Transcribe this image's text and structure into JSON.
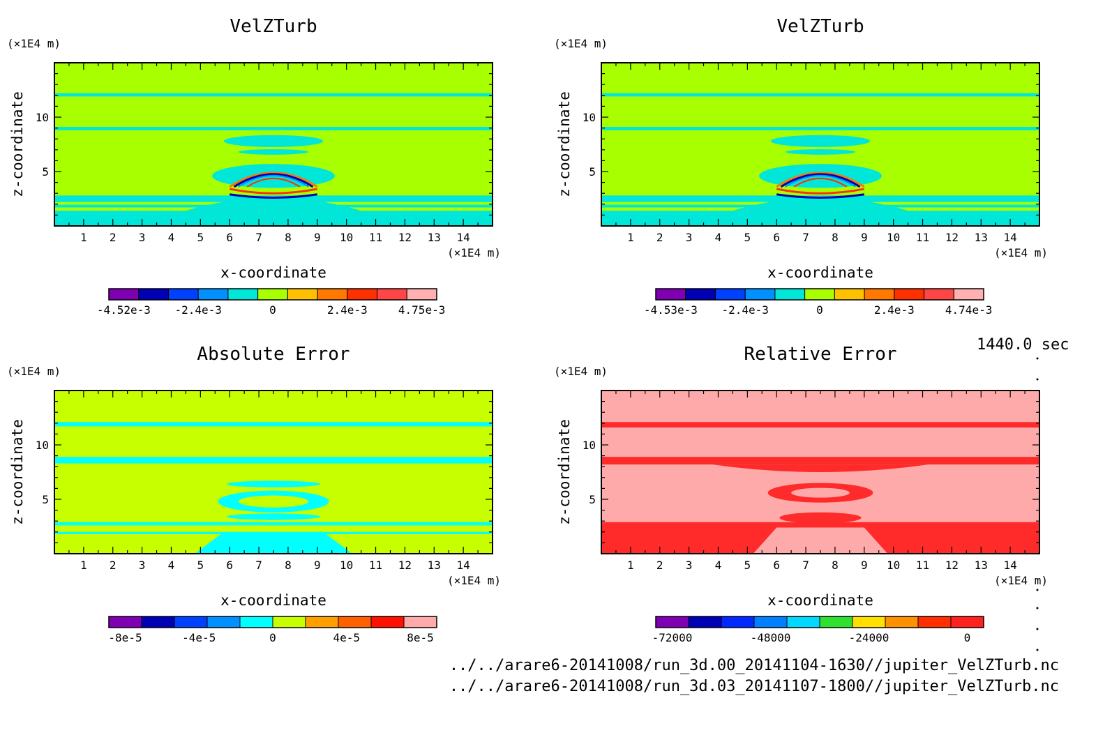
{
  "chart_data": [
    {
      "type": "heatmap",
      "title": "VelZTurb",
      "xlabel": "x-coordinate",
      "ylabel": "z-coordinate",
      "x_unit": "(×1E4 m)",
      "y_unit": "(×1E4 m)",
      "xlim": [
        0,
        15
      ],
      "ylim": [
        0,
        15
      ],
      "xticks": [
        1,
        2,
        3,
        4,
        5,
        6,
        7,
        8,
        9,
        10,
        11,
        12,
        13,
        14
      ],
      "yticks": [
        5,
        10
      ],
      "colorbar": {
        "colors": [
          "#7f00b2",
          "#0000b4",
          "#0040ff",
          "#0090ff",
          "#00e6d8",
          "#a8ff00",
          "#ffc000",
          "#ff7800",
          "#ff3000",
          "#ff4545",
          "#ffb0b0"
        ],
        "tick_labels": [
          "-4.52e-3",
          "-2.4e-3",
          "0",
          "2.4e-3",
          "4.75e-3"
        ]
      }
    },
    {
      "type": "heatmap",
      "title": "VelZTurb",
      "xlabel": "x-coordinate",
      "ylabel": "z-coordinate",
      "x_unit": "(×1E4 m)",
      "y_unit": "(×1E4 m)",
      "xlim": [
        0,
        15
      ],
      "ylim": [
        0,
        15
      ],
      "xticks": [
        1,
        2,
        3,
        4,
        5,
        6,
        7,
        8,
        9,
        10,
        11,
        12,
        13,
        14
      ],
      "yticks": [
        5,
        10
      ],
      "colorbar": {
        "colors": [
          "#7f00b2",
          "#0000b4",
          "#0040ff",
          "#0090ff",
          "#00e6d8",
          "#a8ff00",
          "#ffc000",
          "#ff7800",
          "#ff3000",
          "#ff4545",
          "#ffb0b0"
        ],
        "tick_labels": [
          "-4.53e-3",
          "-2.4e-3",
          "0",
          "2.4e-3",
          "4.74e-3"
        ]
      }
    },
    {
      "type": "heatmap",
      "title": "Absolute Error",
      "xlabel": "x-coordinate",
      "ylabel": "z-coordinate",
      "x_unit": "(×1E4 m)",
      "y_unit": "(×1E4 m)",
      "xlim": [
        0,
        15
      ],
      "ylim": [
        0,
        15
      ],
      "xticks": [
        1,
        2,
        3,
        4,
        5,
        6,
        7,
        8,
        9,
        10,
        11,
        12,
        13,
        14
      ],
      "yticks": [
        5,
        10
      ],
      "colorbar": {
        "colors": [
          "#7f00b2",
          "#0000b4",
          "#0040ff",
          "#0090ff",
          "#00ffff",
          "#c8ff00",
          "#ffa000",
          "#ff6000",
          "#ff1000",
          "#ffaaaa"
        ],
        "tick_labels": [
          "-8e-5",
          "-4e-5",
          "0",
          "4e-5",
          "8e-5"
        ]
      }
    },
    {
      "type": "heatmap",
      "title": "Relative Error",
      "xlabel": "x-coordinate",
      "ylabel": "z-coordinate",
      "x_unit": "(×1E4 m)",
      "y_unit": "(×1E4 m)",
      "xlim": [
        0,
        15
      ],
      "ylim": [
        0,
        15
      ],
      "xticks": [
        1,
        2,
        3,
        4,
        5,
        6,
        7,
        8,
        9,
        10,
        11,
        12,
        13,
        14
      ],
      "yticks": [
        5,
        10
      ],
      "colorbar": {
        "colors": [
          "#7f00b2",
          "#0000b4",
          "#0028ff",
          "#0080ff",
          "#00d8ff",
          "#30e030",
          "#ffe000",
          "#ff9000",
          "#ff3000",
          "#ff2020"
        ],
        "tick_labels": [
          "-72000",
          "-48000",
          "-24000",
          "0"
        ]
      }
    }
  ],
  "time_label": "1440.0 sec",
  "file_paths": [
    "../../arare6-20141008/run_3d.00_20141104-1630//jupiter_VelZTurb.nc",
    "../../arare6-20141008/run_3d.03_20141107-1800//jupiter_VelZTurb.nc"
  ]
}
